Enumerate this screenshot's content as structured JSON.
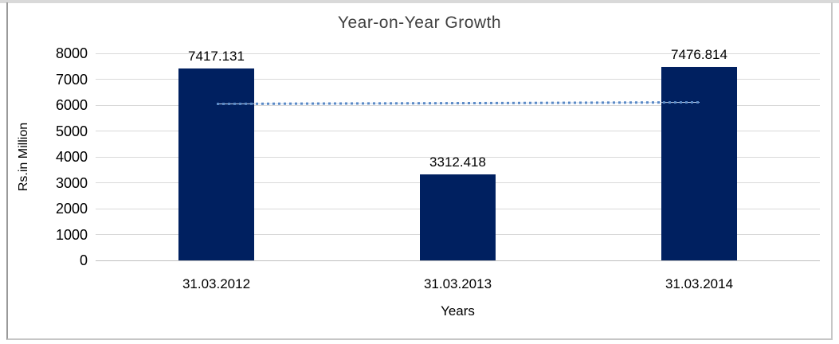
{
  "chart_data": {
    "type": "bar",
    "title": "Year-on-Year Growth",
    "xlabel": "Years",
    "ylabel": "Rs.in Million",
    "categories": [
      "31.03.2012",
      "31.03.2013",
      "31.03.2014"
    ],
    "values": [
      7417.131,
      3312.418,
      7476.814
    ],
    "data_labels": [
      "7417.131",
      "3312.418",
      "7476.814"
    ],
    "ylim": [
      0,
      8000
    ],
    "yticks": [
      8000,
      7000,
      6000,
      5000,
      4000,
      3000,
      2000,
      1000,
      0
    ],
    "grid": true,
    "legend": false,
    "trendline": {
      "style": "dotted",
      "start_value": 6039,
      "end_value": 6099
    }
  },
  "colors": {
    "bar": "#002060",
    "gridline": "#d9d9d9",
    "zero_line": "#bfbfbf",
    "trend_dot": "#5b8ac6",
    "trend_connector": "#c6d7ee",
    "title_text": "#404040",
    "tick_text": "#000000",
    "frame_strip": "#d9d9d9"
  }
}
